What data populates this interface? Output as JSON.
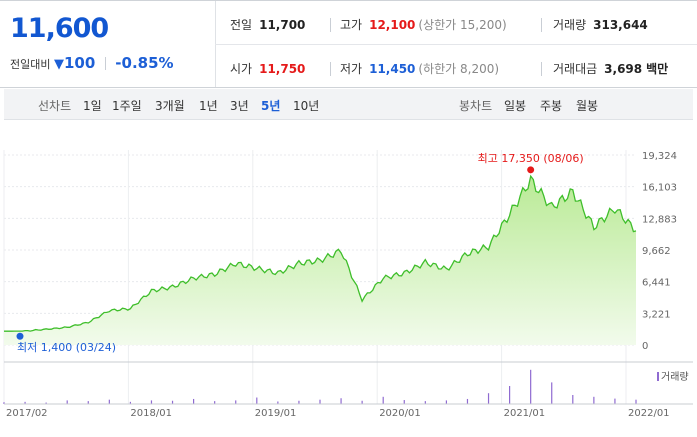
{
  "quote": {
    "price": "11,600",
    "change_label": "전일대비",
    "change_arrow": "▼",
    "change_value": "100",
    "change_pct": "-0.85%",
    "prev_close_label": "전일",
    "prev_close": "11,700",
    "high_label": "고가",
    "high": "12,100",
    "high_limit": "(상한가 15,200)",
    "volume_label": "거래량",
    "volume": "313,644",
    "open_label": "시가",
    "open": "11,750",
    "low_label": "저가",
    "low": "11,450",
    "low_limit": "(하한가 8,200)",
    "amount_label": "거래대금",
    "amount": "3,698",
    "amount_unit": "백만"
  },
  "tabs": {
    "line_head": "선차트",
    "line_tabs": [
      "1일",
      "1주일",
      "3개월",
      "1년",
      "3년",
      "5년",
      "10년"
    ],
    "active_tab": "5년",
    "candle_head": "봉차트",
    "candle_tabs": [
      "일봉",
      "주봉",
      "월봉"
    ]
  },
  "chart_data": {
    "type": "area",
    "yaxis_ticks": [
      "19,324",
      "16,103",
      "12,883",
      "9,662",
      "6,441",
      "3,221",
      "0"
    ],
    "ylim": [
      0,
      19324
    ],
    "xaxis_ticks": [
      "2017/02",
      "2018/01",
      "2019/01",
      "2020/01",
      "2021/01",
      "2022/01"
    ],
    "x": [
      "2017/02",
      "2017/05",
      "2017/08",
      "2017/11",
      "2018/01",
      "2018/03",
      "2018/05",
      "2018/07",
      "2018/09",
      "2018/11",
      "2019/01",
      "2019/03",
      "2019/05",
      "2019/07",
      "2019/09",
      "2019/11",
      "2020/01",
      "2020/03",
      "2020/05",
      "2020/07",
      "2020/09",
      "2020/11",
      "2021/01",
      "2021/03",
      "2021/05",
      "2021/07",
      "2021/08",
      "2021/10",
      "2021/12",
      "2022/01",
      "2022/02"
    ],
    "values": [
      1400,
      1420,
      1600,
      1800,
      2300,
      3500,
      3700,
      5500,
      5900,
      6800,
      7200,
      8300,
      7800,
      7300,
      8300,
      8600,
      9600,
      4600,
      6800,
      7300,
      8400,
      7700,
      9300,
      10000,
      13300,
      16800,
      14000,
      15600,
      12000,
      13900,
      11600
    ],
    "max_label": "최고 17,350 (08/06)",
    "min_label": "최저 1,400 (03/24)",
    "volume_legend": "거래량",
    "volume_bars": [
      0.05,
      0.06,
      0.04,
      0.1,
      0.08,
      0.12,
      0.06,
      0.1,
      0.09,
      0.14,
      0.08,
      0.1,
      0.18,
      0.07,
      0.09,
      0.12,
      0.16,
      0.09,
      0.2,
      0.11,
      0.08,
      0.1,
      0.14,
      0.3,
      0.5,
      0.95,
      0.6,
      0.25,
      0.2,
      0.15,
      0.12
    ],
    "colors": {
      "line": "#3fbe2b",
      "fill_top": "#b9ea95",
      "fill_bottom": "#f2fbec",
      "max": "#e51a1a",
      "min": "#1d5fd6",
      "volume": "#8f6bd1"
    }
  }
}
